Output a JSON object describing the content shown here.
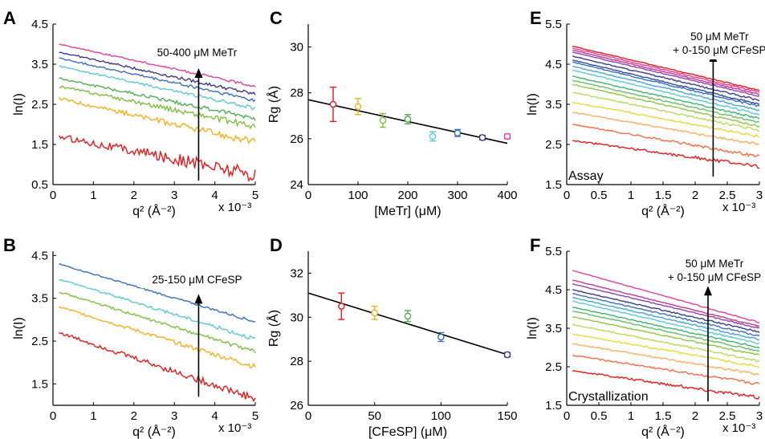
{
  "chart_data": [
    {
      "panel": "A",
      "type": "line",
      "ylabel": "ln(I)",
      "xlabel": "q² (Å⁻²)",
      "x_multiplier": "x 10⁻³",
      "xlim": [
        0,
        5
      ],
      "ylim": [
        0.5,
        4.5
      ],
      "xticks": [
        "0",
        "1",
        "2",
        "3",
        "4",
        "5"
      ],
      "yticks": [
        "0.5",
        "1.5",
        "2.5",
        "3.5",
        "4.5"
      ],
      "annotation": "50-400 μM MeTr",
      "arrow": {
        "x": 3.6,
        "y_from": 0.6,
        "y_to": 3.4
      },
      "series": [
        {
          "color": "#e41a1c",
          "start": 1.7,
          "end": 0.75,
          "noise": 0.12
        },
        {
          "color": "#f2b01e",
          "start": 2.65,
          "end": 1.55,
          "noise": 0.06
        },
        {
          "color": "#7fbf3f",
          "start": 2.95,
          "end": 1.95,
          "noise": 0.05
        },
        {
          "color": "#4caf50",
          "start": 3.15,
          "end": 2.15,
          "noise": 0.04
        },
        {
          "color": "#5bc8d6",
          "start": 3.45,
          "end": 2.4,
          "noise": 0.03
        },
        {
          "color": "#3b6fb6",
          "start": 3.65,
          "end": 2.6,
          "noise": 0.03
        },
        {
          "color": "#3a3a8c",
          "start": 3.8,
          "end": 2.75,
          "noise": 0.03
        },
        {
          "color": "#e0409b",
          "start": 4.0,
          "end": 2.95,
          "noise": 0.02
        }
      ]
    },
    {
      "panel": "B",
      "type": "line",
      "ylabel": "ln(I)",
      "xlabel": "q² (Å⁻²)",
      "x_multiplier": "x 10⁻³",
      "xlim": [
        0,
        5
      ],
      "ylim": [
        1,
        4.6
      ],
      "xticks": [
        "0",
        "1",
        "2",
        "3",
        "4",
        "5"
      ],
      "yticks": [
        "1.5",
        "2.5",
        "3.5",
        "4.5"
      ],
      "annotation": "25-150 μM CFeSP",
      "arrow": {
        "x": 3.6,
        "y_from": 1.2,
        "y_to": 3.6
      },
      "series": [
        {
          "color": "#e41a1c",
          "start": 2.7,
          "end": 1.15,
          "noise": 0.06
        },
        {
          "color": "#f2b01e",
          "start": 3.3,
          "end": 1.9,
          "noise": 0.04
        },
        {
          "color": "#7fbf3f",
          "start": 3.65,
          "end": 2.25,
          "noise": 0.03
        },
        {
          "color": "#5bc8d6",
          "start": 3.95,
          "end": 2.55,
          "noise": 0.03
        },
        {
          "color": "#3b6fb6",
          "start": 4.3,
          "end": 2.95,
          "noise": 0.02
        }
      ]
    },
    {
      "panel": "C",
      "type": "scatter",
      "ylabel": "Rg (Å)",
      "xlabel": "[MeTr] (μM)",
      "xlim": [
        0,
        400
      ],
      "ylim": [
        24,
        31
      ],
      "xticks": [
        "0",
        "100",
        "200",
        "300",
        "400"
      ],
      "yticks": [
        "24",
        "26",
        "28",
        "30"
      ],
      "fit_line": {
        "x": [
          0,
          400
        ],
        "y": [
          27.7,
          25.8
        ]
      },
      "points": [
        {
          "x": 50,
          "y": 27.5,
          "err": 0.75,
          "color": "#e41a1c"
        },
        {
          "x": 100,
          "y": 27.4,
          "err": 0.35,
          "color": "#f2b01e"
        },
        {
          "x": 150,
          "y": 26.8,
          "err": 0.3,
          "color": "#7fbf3f"
        },
        {
          "x": 200,
          "y": 26.85,
          "err": 0.2,
          "color": "#4caf50"
        },
        {
          "x": 250,
          "y": 26.1,
          "err": 0.2,
          "color": "#5bc8d6"
        },
        {
          "x": 300,
          "y": 26.25,
          "err": 0.15,
          "color": "#3b6fb6"
        },
        {
          "x": 350,
          "y": 26.05,
          "err": 0.1,
          "color": "#3a3a8c"
        },
        {
          "x": 400,
          "y": 26.1,
          "err": 0.1,
          "color": "#e0409b"
        }
      ]
    },
    {
      "panel": "D",
      "type": "scatter",
      "ylabel": "Rg (Å)",
      "xlabel": "[CFeSP] (μM)",
      "xlim": [
        0,
        150
      ],
      "ylim": [
        26,
        33
      ],
      "xticks": [
        "0",
        "50",
        "100",
        "150"
      ],
      "yticks": [
        "26",
        "28",
        "30",
        "32"
      ],
      "fit_line": {
        "x": [
          0,
          150
        ],
        "y": [
          31.1,
          28.3
        ]
      },
      "points": [
        {
          "x": 25,
          "y": 30.5,
          "err": 0.6,
          "color": "#e41a1c"
        },
        {
          "x": 50,
          "y": 30.2,
          "err": 0.3,
          "color": "#f2b01e"
        },
        {
          "x": 75,
          "y": 30.05,
          "err": 0.25,
          "color": "#4caf50"
        },
        {
          "x": 100,
          "y": 29.1,
          "err": 0.2,
          "color": "#3b6fb6"
        },
        {
          "x": 150,
          "y": 28.3,
          "err": 0.1,
          "color": "#3a3a8c"
        }
      ]
    },
    {
      "panel": "E",
      "type": "line",
      "ylabel": "ln(I)",
      "xlabel": "q² (Å⁻²)",
      "x_multiplier": "x 10⁻³",
      "xlim": [
        0,
        3
      ],
      "ylim": [
        1.5,
        5.5
      ],
      "xticks": [
        "0",
        "0.5",
        "1",
        "1.5",
        "2",
        "2.5",
        "3"
      ],
      "yticks": [
        "1.5",
        "2.5",
        "3.5",
        "4.5",
        "5.5"
      ],
      "annotation_lines": [
        "50 μM MeTr",
        "+ 0-150 μM CFeSP"
      ],
      "inset_label": "Assay",
      "arrow": {
        "x": 2.28,
        "y_from": 1.7,
        "y_to": 4.8
      },
      "series": [
        {
          "color": "#e41a1c",
          "start": 2.6,
          "end": 1.95,
          "noise": 0.03
        },
        {
          "color": "#f46d43",
          "start": 3.0,
          "end": 2.2,
          "noise": 0.025
        },
        {
          "color": "#fdae61",
          "start": 3.3,
          "end": 2.5,
          "noise": 0.02
        },
        {
          "color": "#e6d93a",
          "start": 3.55,
          "end": 2.7,
          "noise": 0.02
        },
        {
          "color": "#b9d95a",
          "start": 3.8,
          "end": 2.85,
          "noise": 0.02
        },
        {
          "color": "#8cc63f",
          "start": 4.0,
          "end": 2.95,
          "noise": 0.015
        },
        {
          "color": "#66bd63",
          "start": 4.1,
          "end": 3.05,
          "noise": 0.015
        },
        {
          "color": "#3cb371",
          "start": 4.2,
          "end": 3.15,
          "noise": 0.015
        },
        {
          "color": "#5bc8d6",
          "start": 4.35,
          "end": 3.25,
          "noise": 0.015
        },
        {
          "color": "#4aa3d8",
          "start": 4.45,
          "end": 3.35,
          "noise": 0.015
        },
        {
          "color": "#3b6fb6",
          "start": 4.55,
          "end": 3.45,
          "noise": 0.015
        },
        {
          "color": "#2c4f9e",
          "start": 4.6,
          "end": 3.5,
          "noise": 0.015
        },
        {
          "color": "#3a3a8c",
          "start": 4.7,
          "end": 3.6,
          "noise": 0.015
        },
        {
          "color": "#8e44ad",
          "start": 4.8,
          "end": 3.7,
          "noise": 0.01
        },
        {
          "color": "#c0398e",
          "start": 4.85,
          "end": 3.75,
          "noise": 0.01
        },
        {
          "color": "#e0409b",
          "start": 4.9,
          "end": 3.8,
          "noise": 0.01
        },
        {
          "color": "#e41a1c",
          "start": 4.95,
          "end": 3.85,
          "noise": 0.01
        }
      ]
    },
    {
      "panel": "F",
      "type": "line",
      "ylabel": "ln(I)",
      "xlabel": "q² (Å⁻²)",
      "x_multiplier": "x 10⁻³",
      "xlim": [
        0,
        3
      ],
      "ylim": [
        1.5,
        5.5
      ],
      "xticks": [
        "0",
        "0.5",
        "1",
        "1.5",
        "2",
        "2.5",
        "3"
      ],
      "yticks": [
        "1.5",
        "2.5",
        "3.5",
        "4.5",
        "5.5"
      ],
      "annotation_lines": [
        "50 μM MeTr",
        "+ 0-150 μM CFeSP"
      ],
      "inset_label": "Crystallization",
      "arrow": {
        "x": 2.2,
        "y_from": 1.6,
        "y_to": 4.6
      },
      "series": [
        {
          "color": "#e41a1c",
          "start": 2.4,
          "end": 1.7,
          "noise": 0.03
        },
        {
          "color": "#f46d43",
          "start": 2.8,
          "end": 2.05,
          "noise": 0.025
        },
        {
          "color": "#fdae61",
          "start": 3.1,
          "end": 2.3,
          "noise": 0.02
        },
        {
          "color": "#e6d93a",
          "start": 3.35,
          "end": 2.5,
          "noise": 0.02
        },
        {
          "color": "#b9d95a",
          "start": 3.6,
          "end": 2.65,
          "noise": 0.02
        },
        {
          "color": "#8cc63f",
          "start": 3.8,
          "end": 2.8,
          "noise": 0.015
        },
        {
          "color": "#66bd63",
          "start": 3.95,
          "end": 2.9,
          "noise": 0.015
        },
        {
          "color": "#3cb371",
          "start": 4.05,
          "end": 3.0,
          "noise": 0.015
        },
        {
          "color": "#5bc8d6",
          "start": 4.2,
          "end": 3.1,
          "noise": 0.015
        },
        {
          "color": "#4aa3d8",
          "start": 4.3,
          "end": 3.2,
          "noise": 0.015
        },
        {
          "color": "#3b6fb6",
          "start": 4.4,
          "end": 3.3,
          "noise": 0.015
        },
        {
          "color": "#3a3a8c",
          "start": 4.5,
          "end": 3.4,
          "noise": 0.015
        },
        {
          "color": "#8e44ad",
          "start": 4.65,
          "end": 3.5,
          "noise": 0.01
        },
        {
          "color": "#c0398e",
          "start": 4.75,
          "end": 3.55,
          "noise": 0.01
        },
        {
          "color": "#e0409b",
          "start": 5.0,
          "end": 3.65,
          "noise": 0.01
        }
      ]
    }
  ]
}
